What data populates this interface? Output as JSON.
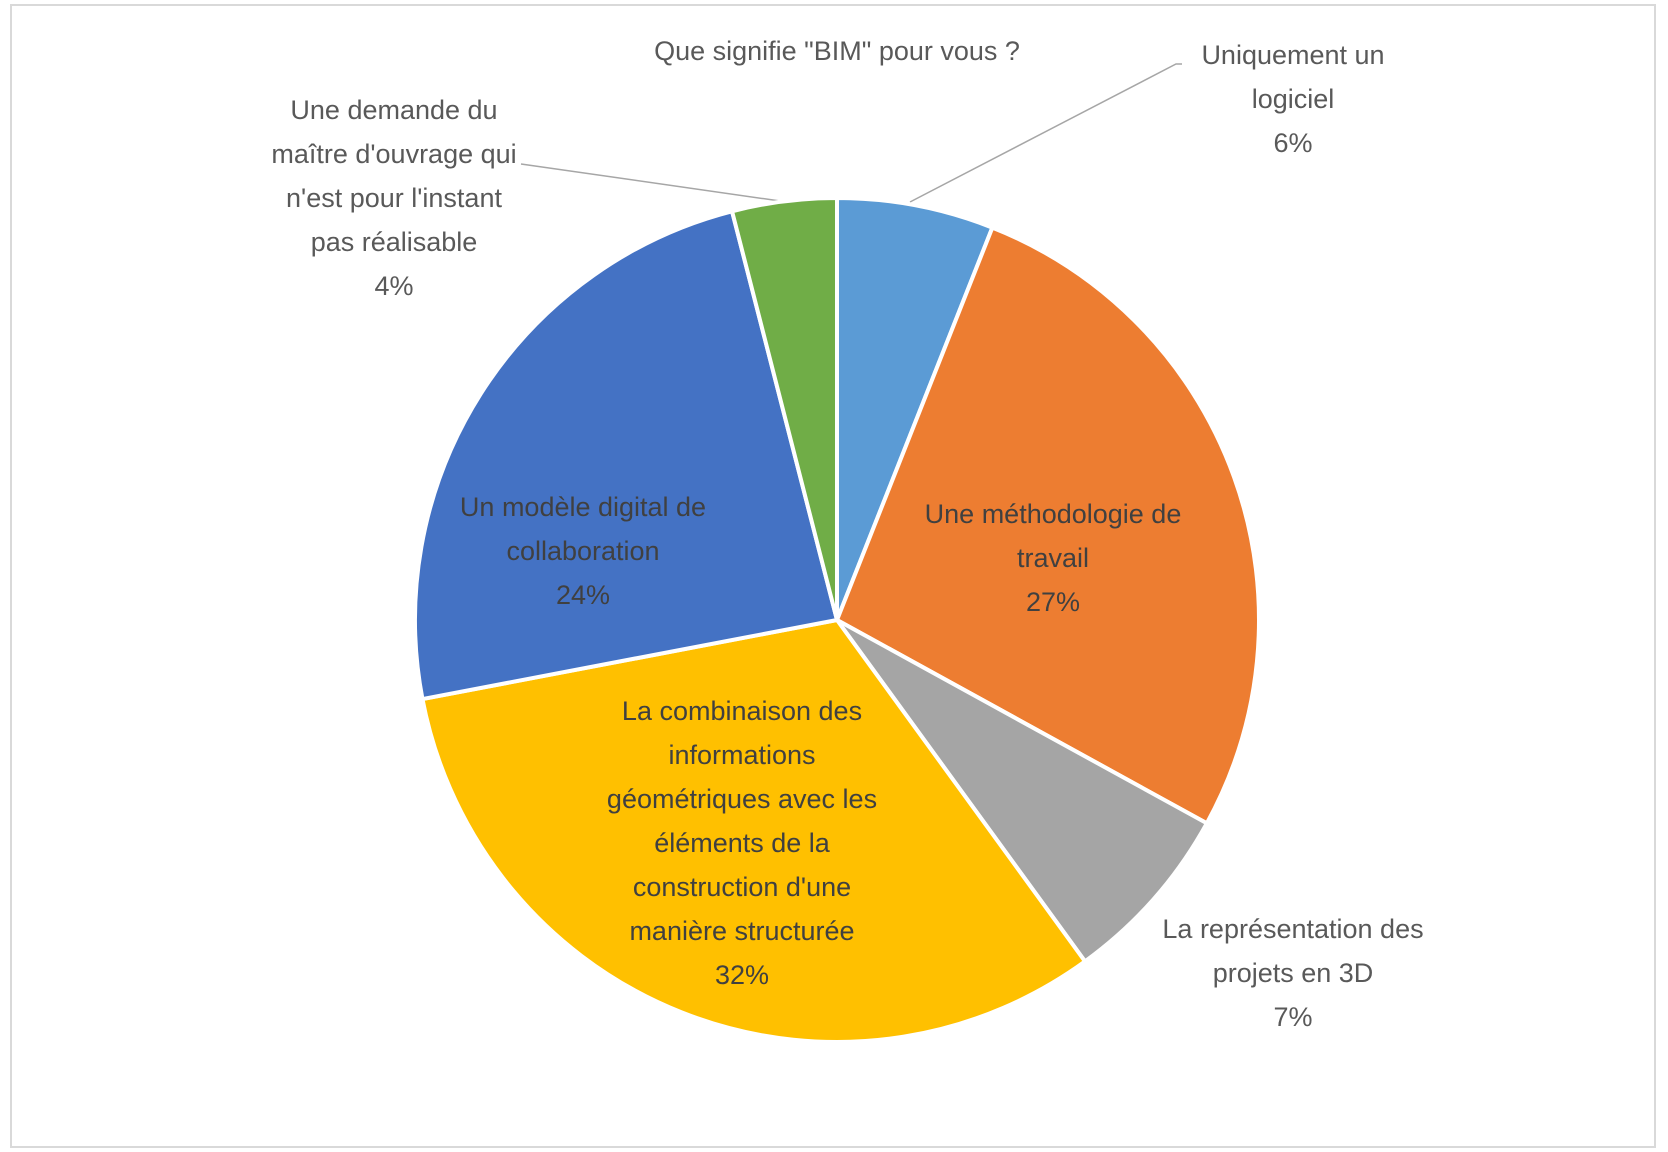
{
  "chart_data": {
    "type": "pie",
    "title": "Que signifie \"BIM\" pour vous ?",
    "categories": [
      "Uniquement un logiciel",
      "Une méthodologie de travail",
      "La représentation des projets en 3D",
      "La combinaison des informations géométriques avec les éléments de la construction d'une manière structurée",
      "Un modèle digital de collaboration",
      "Une demande du maître d'ouvrage qui n'est pour l'instant pas réalisable"
    ],
    "values": [
      6,
      27,
      7,
      32,
      24,
      4
    ],
    "value_labels": [
      "6%",
      "27%",
      "7%",
      "32%",
      "24%",
      "4%"
    ],
    "colors": [
      "#5b9bd5",
      "#ed7d31",
      "#a5a5a5",
      "#ffc000",
      "#4472c4",
      "#70ad47"
    ]
  }
}
